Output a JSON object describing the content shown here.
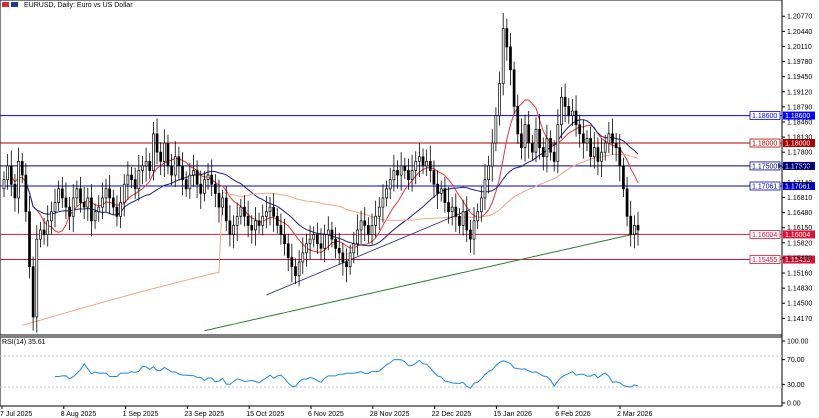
{
  "header": {
    "title": "EURUSD, Daily:  Euro vs US Dollar",
    "icon": "chart-window-icon"
  },
  "rsi_panel": {
    "label": "RSI(14) 35.61",
    "ticks": [
      "100.00",
      "70.00",
      "30.00",
      "0.00"
    ]
  },
  "x_axis": {
    "ticks": [
      "7 Jul 2025",
      "8 Aug 2025",
      "1 Sep 2025",
      "23 Sep 2025",
      "15 Oct 2025",
      "6 Nov 2025",
      "28 Nov 2025",
      "22 Dec 2025",
      "15 Jan 2026",
      "6 Feb 2026",
      "2 Mar 2026"
    ]
  },
  "chart_data": {
    "type": "candlestick",
    "y_ticks": [
      "1.20770",
      "1.20440",
      "1.20110",
      "1.19780",
      "1.19450",
      "1.19120",
      "1.18790",
      "1.18460",
      "1.18130",
      "1.17800",
      "1.17470",
      "1.17140",
      "1.16810",
      "1.16480",
      "1.16150",
      "1.15820",
      "1.15490",
      "1.15160",
      "1.14830",
      "1.14500",
      "1.14170"
    ],
    "ylim": [
      1.1385,
      1.2095
    ],
    "h_levels": [
      {
        "label": "1.18600",
        "value": 1.186,
        "color": "#0000ff"
      },
      {
        "label": "1.18000",
        "value": 1.18,
        "color": "#b00000"
      },
      {
        "label": "1.17500",
        "value": 1.175,
        "color": "#00008b"
      },
      {
        "label": "1.17061",
        "value": 1.17061,
        "color": "#0000cd"
      },
      {
        "label": "1.16004",
        "value": 1.16004,
        "color": "#dc143c"
      },
      {
        "label": "1.15455",
        "value": 1.15455,
        "color": "#dc143c"
      }
    ],
    "current_price": "1.17500",
    "closes": [
      1.172,
      1.175,
      1.171,
      1.168,
      1.176,
      1.173,
      1.165,
      1.153,
      1.142,
      1.159,
      1.161,
      1.16,
      1.163,
      1.165,
      1.167,
      1.17,
      1.168,
      1.166,
      1.164,
      1.168,
      1.17,
      1.167,
      1.166,
      1.168,
      1.163,
      1.165,
      1.166,
      1.168,
      1.17,
      1.168,
      1.166,
      1.164,
      1.167,
      1.171,
      1.173,
      1.172,
      1.17,
      1.174,
      1.175,
      1.176,
      1.174,
      1.182,
      1.178,
      1.176,
      1.18,
      1.175,
      1.173,
      1.177,
      1.175,
      1.172,
      1.17,
      1.173,
      1.174,
      1.171,
      1.169,
      1.172,
      1.173,
      1.171,
      1.169,
      1.166,
      1.168,
      1.163,
      1.16,
      1.162,
      1.164,
      1.166,
      1.164,
      1.162,
      1.161,
      1.163,
      1.162,
      1.164,
      1.165,
      1.166,
      1.164,
      1.162,
      1.16,
      1.158,
      1.155,
      1.153,
      1.151,
      1.154,
      1.156,
      1.158,
      1.159,
      1.16,
      1.158,
      1.157,
      1.16,
      1.161,
      1.159,
      1.157,
      1.156,
      1.154,
      1.153,
      1.156,
      1.158,
      1.161,
      1.163,
      1.162,
      1.16,
      1.162,
      1.164,
      1.166,
      1.168,
      1.17,
      1.172,
      1.174,
      1.173,
      1.175,
      1.174,
      1.172,
      1.174,
      1.176,
      1.177,
      1.175,
      1.176,
      1.174,
      1.171,
      1.169,
      1.17,
      1.167,
      1.165,
      1.166,
      1.164,
      1.162,
      1.165,
      1.161,
      1.159,
      1.163,
      1.165,
      1.168,
      1.172,
      1.175,
      1.18,
      1.186,
      1.193,
      1.205,
      1.201,
      1.196,
      1.188,
      1.182,
      1.179,
      1.184,
      1.18,
      1.178,
      1.183,
      1.179,
      1.177,
      1.181,
      1.178,
      1.176,
      1.184,
      1.19,
      1.188,
      1.186,
      1.187,
      1.184,
      1.182,
      1.18,
      1.181,
      1.177,
      1.179,
      1.176,
      1.178,
      1.18,
      1.182,
      1.18,
      1.179,
      1.175,
      1.17,
      1.164,
      1.16,
      1.162,
      1.161
    ]
  }
}
